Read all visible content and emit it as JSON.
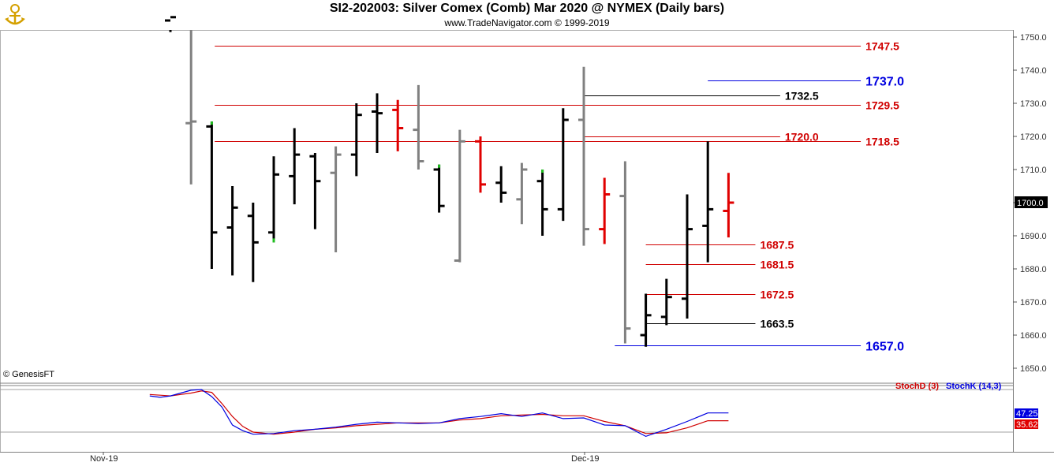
{
  "header": {
    "title": "SI2-202003:  Silver Comex (Comb) Mar 2020 @ NYMEX  (Daily bars)",
    "subtitle": "www.TradeNavigator.com © 1999-2019",
    "copyright": "© GenesisFT"
  },
  "chart_data": {
    "type": "bar",
    "title": "SI2-202003:  Silver Comex (Comb) Mar 2020 @ NYMEX  (Daily bars)",
    "price_axis": {
      "ylim": [
        1643,
        1760
      ],
      "ticks": [
        "1750.0",
        "1740.0",
        "1730.0",
        "1720.0",
        "1710.0",
        "1700.0",
        "1690.0",
        "1680.0",
        "1670.0",
        "1660.0",
        "1650.0"
      ],
      "current_value": "1700.0"
    },
    "x_labels": [
      {
        "label": "Nov-19",
        "bar": 2
      },
      {
        "label": "Dec-19",
        "bar": 23
      }
    ],
    "colors": {
      "black": "#000000",
      "gray": "#808080",
      "red": "#e00000",
      "green": "#20c020"
    },
    "bars": [
      {
        "i": 0,
        "o": 1755.0,
        "h": 1760.0,
        "l": 1751.5,
        "c": 1756.0,
        "color": "black"
      },
      {
        "i": 1,
        "o": 1724.0,
        "h": 1760.0,
        "l": 1705.5,
        "c": 1724.5,
        "color": "gray"
      },
      {
        "i": 2,
        "o": 1723.0,
        "h": 1724.5,
        "l": 1680.0,
        "c": 1691.0,
        "color": "black",
        "mark_top": "green"
      },
      {
        "i": 3,
        "o": 1692.5,
        "h": 1705.0,
        "l": 1678.0,
        "c": 1698.5,
        "color": "black"
      },
      {
        "i": 4,
        "o": 1696.0,
        "h": 1700.0,
        "l": 1676.0,
        "c": 1688.0,
        "color": "black"
      },
      {
        "i": 5,
        "o": 1691.0,
        "h": 1714.0,
        "l": 1688.0,
        "c": 1708.5,
        "color": "black",
        "mark_bottom": "green"
      },
      {
        "i": 6,
        "o": 1708.0,
        "h": 1722.5,
        "l": 1699.5,
        "c": 1714.5,
        "color": "black"
      },
      {
        "i": 7,
        "o": 1714.0,
        "h": 1715.0,
        "l": 1692.0,
        "c": 1706.5,
        "color": "black"
      },
      {
        "i": 8,
        "o": 1709.0,
        "h": 1717.0,
        "l": 1685.0,
        "c": 1714.5,
        "color": "gray"
      },
      {
        "i": 9,
        "o": 1714.5,
        "h": 1730.0,
        "l": 1708.0,
        "c": 1726.5,
        "color": "black"
      },
      {
        "i": 10,
        "o": 1727.5,
        "h": 1733.0,
        "l": 1715.0,
        "c": 1727.0,
        "color": "black"
      },
      {
        "i": 11,
        "o": 1728.0,
        "h": 1731.0,
        "l": 1715.5,
        "c": 1722.5,
        "color": "red"
      },
      {
        "i": 12,
        "o": 1722.0,
        "h": 1735.5,
        "l": 1710.0,
        "c": 1712.5,
        "color": "gray"
      },
      {
        "i": 13,
        "o": 1710.0,
        "h": 1711.5,
        "l": 1697.0,
        "c": 1699.0,
        "color": "black",
        "mark_top": "green"
      },
      {
        "i": 14,
        "o": 1682.5,
        "h": 1722.0,
        "l": 1682.0,
        "c": 1718.5,
        "color": "gray"
      },
      {
        "i": 15,
        "o": 1718.5,
        "h": 1720.0,
        "l": 1703.0,
        "c": 1705.5,
        "color": "red"
      },
      {
        "i": 16,
        "o": 1706.0,
        "h": 1711.0,
        "l": 1700.0,
        "c": 1703.0,
        "color": "black"
      },
      {
        "i": 17,
        "o": 1701.0,
        "h": 1712.0,
        "l": 1693.5,
        "c": 1710.0,
        "color": "gray"
      },
      {
        "i": 18,
        "o": 1706.5,
        "h": 1710.0,
        "l": 1690.0,
        "c": 1698.0,
        "color": "black",
        "mark_top": "green"
      },
      {
        "i": 19,
        "o": 1698.0,
        "h": 1728.5,
        "l": 1694.5,
        "c": 1725.0,
        "color": "black"
      },
      {
        "i": 20,
        "o": 1725.0,
        "h": 1741.0,
        "l": 1687.0,
        "c": 1692.0,
        "color": "gray"
      },
      {
        "i": 21,
        "o": 1692.0,
        "h": 1707.5,
        "l": 1687.5,
        "c": 1702.5,
        "color": "red"
      },
      {
        "i": 22,
        "o": 1702.0,
        "h": 1712.5,
        "l": 1657.5,
        "c": 1662.0,
        "color": "gray"
      },
      {
        "i": 23,
        "o": 1660.0,
        "h": 1672.5,
        "l": 1656.5,
        "c": 1666.0,
        "color": "black"
      },
      {
        "i": 24,
        "o": 1665.5,
        "h": 1677.0,
        "l": 1663.0,
        "c": 1671.5,
        "color": "black"
      },
      {
        "i": 25,
        "o": 1671.0,
        "h": 1702.5,
        "l": 1665.0,
        "c": 1692.0,
        "color": "black"
      },
      {
        "i": 26,
        "o": 1693.0,
        "h": 1718.5,
        "l": 1682.0,
        "c": 1698.0,
        "color": "black"
      },
      {
        "i": 27,
        "o": 1697.5,
        "h": 1709.0,
        "l": 1689.5,
        "c": 1700.0,
        "color": "red"
      }
    ],
    "levels": [
      {
        "value": 1747.5,
        "label": "1747.5",
        "color": "#d00000",
        "style": "red-line",
        "from_bar": 1,
        "to_bar": 33.4
      },
      {
        "value": 1737.0,
        "label": "1737.0",
        "color": "#0000e0",
        "style": "blue",
        "from_bar": 26,
        "to_bar": 33.4
      },
      {
        "value": 1732.5,
        "label": "1732.5",
        "color": "#000000",
        "style": "black",
        "from_bar": 20,
        "to_bar": 29.5
      },
      {
        "value": 1729.5,
        "label": "1729.5",
        "color": "#d00000",
        "style": "red-line",
        "from_bar": 1,
        "to_bar": 33.4
      },
      {
        "value": 1720.0,
        "label": "1720.0",
        "color": "#d00000",
        "style": "red-line",
        "from_bar": 20,
        "to_bar": 29.5
      },
      {
        "value": 1718.5,
        "label": "1718.5",
        "color": "#d00000",
        "style": "red-line",
        "from_bar": 1,
        "to_bar": 33.4
      },
      {
        "value": 1687.5,
        "label": "1687.5",
        "color": "#d00000",
        "style": "red-line",
        "from_bar": 23,
        "to_bar": 28.3
      },
      {
        "value": 1681.5,
        "label": "1681.5",
        "color": "#d00000",
        "style": "red-line",
        "from_bar": 23,
        "to_bar": 28.3
      },
      {
        "value": 1672.5,
        "label": "1672.5",
        "color": "#d00000",
        "style": "red-line",
        "from_bar": 23,
        "to_bar": 28.3
      },
      {
        "value": 1663.5,
        "label": "1663.5",
        "color": "#000000",
        "style": "black",
        "from_bar": 23,
        "to_bar": 28.3
      },
      {
        "value": 1657.0,
        "label": "1657.0",
        "color": "#0000e0",
        "style": "blue",
        "from_bar": 21.5,
        "to_bar": 33.4
      }
    ],
    "stochastic": {
      "legend": [
        {
          "name": "StochD (3)",
          "color": "#d00000"
        },
        {
          "name": "StochK (14,3)",
          "color": "#0000e0"
        }
      ],
      "ylim": [
        0,
        100
      ],
      "levels": [
        80,
        20
      ],
      "x": [
        -1,
        -0.5,
        0,
        0.5,
        1,
        1.5,
        2,
        2.5,
        3,
        3.5,
        4,
        5,
        6,
        7,
        8,
        9,
        10,
        11,
        12,
        13,
        14,
        15,
        16,
        17,
        18,
        19,
        20,
        21,
        22,
        23,
        24,
        25,
        26,
        27
      ],
      "k_values": [
        71,
        69,
        71,
        75,
        79,
        80,
        70,
        55,
        30,
        22,
        17,
        18,
        22,
        24,
        27,
        31,
        34,
        33,
        32,
        33,
        39,
        42,
        46,
        42,
        47,
        39,
        40,
        30,
        29,
        14,
        24,
        35,
        47,
        47
      ],
      "d_values": [
        73,
        72,
        71,
        73,
        75,
        78,
        76,
        60,
        42,
        28,
        20,
        17,
        20,
        24,
        26,
        29,
        31,
        33,
        33,
        33,
        37,
        39,
        43,
        44,
        45,
        43,
        43,
        35,
        29,
        18,
        19,
        26,
        36,
        36
      ],
      "k_current": "47.25",
      "d_current": "35.62"
    }
  }
}
